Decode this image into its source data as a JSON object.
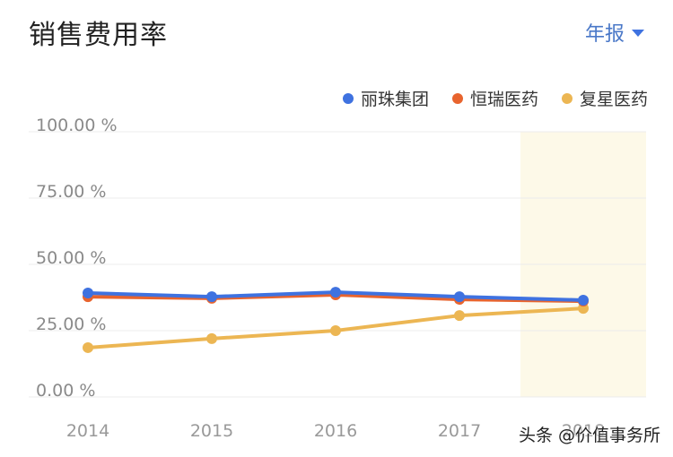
{
  "header": {
    "title": "销售费用率",
    "period_selector": "年报"
  },
  "legend": [
    {
      "name": "丽珠集团",
      "color": "#3f72e0"
    },
    {
      "name": "恒瑞医药",
      "color": "#e8642e"
    },
    {
      "name": "复星医药",
      "color": "#ecb653"
    }
  ],
  "watermark": "头条 @价值事务所",
  "chart_data": {
    "type": "line",
    "title": "销售费用率",
    "xlabel": "",
    "ylabel": "",
    "categories": [
      "2014",
      "2015",
      "2016",
      "2017",
      "2018"
    ],
    "y_ticks": [
      "0.00 %",
      "25.00 %",
      "50.00 %",
      "75.00 %",
      "100.00 %"
    ],
    "ylim": [
      0,
      100
    ],
    "grid": true,
    "legend_position": "top-right",
    "highlight_category": "2018",
    "highlight_color": "#fdf9e8",
    "series": [
      {
        "name": "丽珠集团",
        "color": "#3f72e0",
        "values": [
          39.2,
          37.8,
          39.5,
          37.8,
          36.5
        ]
      },
      {
        "name": "恒瑞医药",
        "color": "#e8642e",
        "values": [
          37.8,
          37.2,
          38.5,
          36.8,
          36.1
        ]
      },
      {
        "name": "复星医药",
        "color": "#ecb653",
        "values": [
          18.6,
          22.0,
          25.0,
          30.7,
          33.4
        ]
      }
    ]
  }
}
